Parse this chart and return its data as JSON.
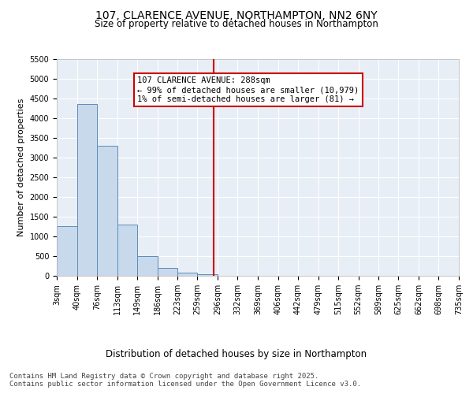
{
  "title": "107, CLARENCE AVENUE, NORTHAMPTON, NN2 6NY",
  "subtitle": "Size of property relative to detached houses in Northampton",
  "xlabel": "Distribution of detached houses by size in Northampton",
  "ylabel": "Number of detached properties",
  "bar_color": "#c9d9ec",
  "bar_edge_color": "#5b8db8",
  "background_color": "#e8eef5",
  "grid_color": "#ffffff",
  "fig_background": "#ffffff",
  "vline_x": 288,
  "vline_color": "#cc0000",
  "annotation_text": "107 CLARENCE AVENUE: 288sqm\n← 99% of detached houses are smaller (10,979)\n1% of semi-detached houses are larger (81) →",
  "annotation_box_color": "#ffffff",
  "annotation_box_edge": "#cc0000",
  "bins": [
    3,
    40,
    76,
    113,
    149,
    186,
    223,
    259,
    296,
    332,
    369,
    406,
    442,
    479,
    515,
    552,
    589,
    625,
    662,
    698,
    735
  ],
  "bin_labels": [
    "3sqm",
    "40sqm",
    "76sqm",
    "113sqm",
    "149sqm",
    "186sqm",
    "223sqm",
    "259sqm",
    "296sqm",
    "332sqm",
    "369sqm",
    "406sqm",
    "442sqm",
    "479sqm",
    "515sqm",
    "552sqm",
    "589sqm",
    "625sqm",
    "662sqm",
    "698sqm",
    "735sqm"
  ],
  "bar_heights": [
    1270,
    4350,
    3300,
    1300,
    500,
    210,
    80,
    50,
    0,
    0,
    0,
    0,
    0,
    0,
    0,
    0,
    0,
    0,
    0,
    0
  ],
  "ylim": [
    0,
    5500
  ],
  "yticks": [
    0,
    500,
    1000,
    1500,
    2000,
    2500,
    3000,
    3500,
    4000,
    4500,
    5000,
    5500
  ],
  "footer_text": "Contains HM Land Registry data © Crown copyright and database right 2025.\nContains public sector information licensed under the Open Government Licence v3.0.",
  "title_fontsize": 10,
  "subtitle_fontsize": 8.5,
  "xlabel_fontsize": 8.5,
  "ylabel_fontsize": 8,
  "tick_fontsize": 7,
  "footer_fontsize": 6.5,
  "annot_fontsize": 7.5
}
